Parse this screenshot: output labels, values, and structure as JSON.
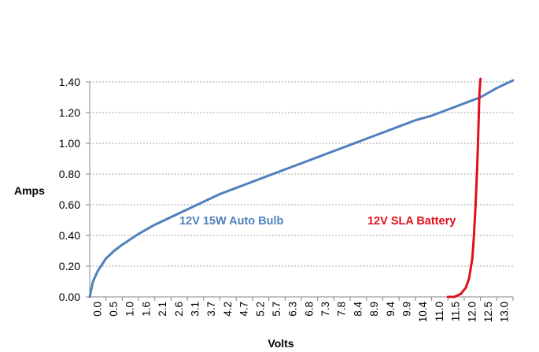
{
  "chart_data": {
    "type": "line",
    "title": "",
    "xlabel": "Volts",
    "ylabel": "Amps",
    "xlim": [
      0,
      13.0
    ],
    "ylim": [
      0,
      1.4
    ],
    "grid": true,
    "y_ticks": [
      "0.00",
      "0.20",
      "0.40",
      "0.60",
      "0.80",
      "1.00",
      "1.20",
      "1.40"
    ],
    "x_ticks": [
      "0.0",
      "0.5",
      "1.0",
      "1.6",
      "2.1",
      "2.6",
      "3.1",
      "3.7",
      "4.2",
      "4.7",
      "5.2",
      "5.7",
      "6.3",
      "6.8",
      "7.3",
      "7.8",
      "8.4",
      "8.9",
      "9.4",
      "9.9",
      "10.4",
      "11.0",
      "11.5",
      "12.0",
      "12.5",
      "13.0"
    ],
    "series": [
      {
        "name": "12V 15W Auto Bulb",
        "color": "#4f81bd",
        "x": [
          0.0,
          0.1,
          0.25,
          0.5,
          0.75,
          1.0,
          1.5,
          2.0,
          2.5,
          3.0,
          3.5,
          4.0,
          4.5,
          5.0,
          5.5,
          6.0,
          6.5,
          7.0,
          7.5,
          8.0,
          8.5,
          9.0,
          9.5,
          10.0,
          10.5,
          11.0,
          11.5,
          12.0,
          12.5,
          13.0
        ],
        "values": [
          0.0,
          0.1,
          0.17,
          0.25,
          0.3,
          0.34,
          0.41,
          0.47,
          0.52,
          0.57,
          0.62,
          0.67,
          0.71,
          0.75,
          0.79,
          0.83,
          0.87,
          0.91,
          0.95,
          0.99,
          1.03,
          1.07,
          1.11,
          1.15,
          1.18,
          1.22,
          1.26,
          1.3,
          1.36,
          1.41
        ]
      },
      {
        "name": "12V SLA Battery",
        "color": "#e0101c",
        "x": [
          11.0,
          11.2,
          11.4,
          11.55,
          11.65,
          11.75,
          11.8,
          11.85,
          11.9,
          11.93,
          11.95,
          11.97,
          12.0
        ],
        "values": [
          0.0,
          0.0,
          0.02,
          0.06,
          0.12,
          0.25,
          0.4,
          0.6,
          0.85,
          1.05,
          1.2,
          1.33,
          1.42
        ]
      }
    ]
  }
}
